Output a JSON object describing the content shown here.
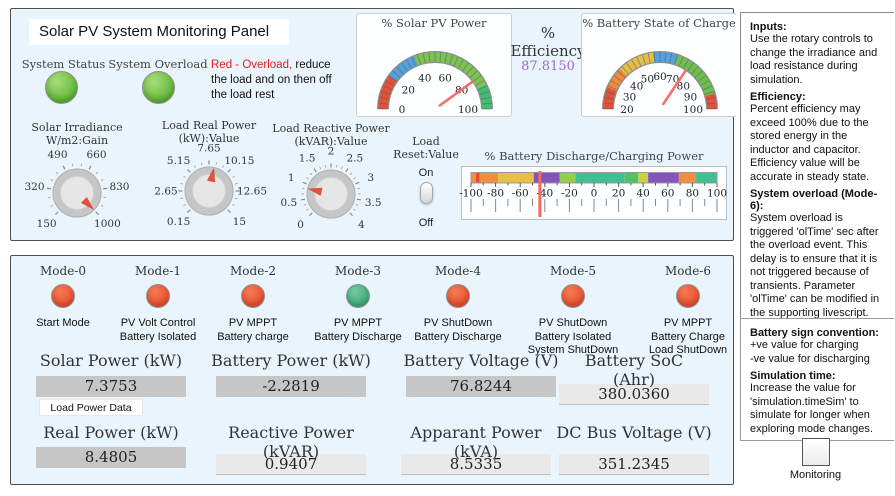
{
  "panel_title": "Solar PV System Monitoring Panel",
  "colors": {
    "panel_bg": "#e9f4fc",
    "led_green": "#5cb832",
    "led_red": "#ee5030",
    "mode_on_green": "#3fae7c",
    "needle_red": "#f2726a",
    "efficiency_value": "#a06bc9",
    "value_box_gray": "#c6c6c6",
    "warning_red": "#e01f1f"
  },
  "status": {
    "system_status_label": "System Status",
    "system_overload_label": "System Overload",
    "overload_warning_red": "Red - Overload,",
    "overload_warning_rest": "  reduce the load and on then off the load rest"
  },
  "efficiency": {
    "title1": "%",
    "title2": "Efficiency",
    "value": "87.8150"
  },
  "gauges": {
    "solar_pv": {
      "title": "% Solar PV Power",
      "min": 0,
      "max": 100,
      "value": 80,
      "ticks": [
        0,
        20,
        40,
        60,
        80,
        100
      ],
      "segments": [
        {
          "from": 0,
          "to": 20,
          "color": "#e2523b"
        },
        {
          "from": 20,
          "to": 38,
          "color": "#53a2dd"
        },
        {
          "from": 38,
          "to": 86,
          "color": "#7cc254"
        },
        {
          "from": 86,
          "to": 100,
          "color": "#43bd74"
        }
      ]
    },
    "battery_soc": {
      "title": "% Battery State of Charge",
      "min": 20,
      "max": 100,
      "value": 75,
      "ticks": [
        20,
        30,
        40,
        50,
        60,
        70,
        80,
        90,
        100
      ],
      "segments": [
        {
          "from": 20,
          "to": 30,
          "color": "#e2523b"
        },
        {
          "from": 30,
          "to": 40,
          "color": "#ee8b3c"
        },
        {
          "from": 40,
          "to": 57,
          "color": "#e3bf47"
        },
        {
          "from": 57,
          "to": 68,
          "color": "#53a2dd"
        },
        {
          "from": 68,
          "to": 93,
          "color": "#6fbe52"
        },
        {
          "from": 93,
          "to": 100,
          "color": "#e2523b"
        }
      ]
    },
    "discharge": {
      "title": "% Battery Discharge/Charging Power",
      "min": -100,
      "max": 100,
      "value": -44,
      "ticks": [
        -100,
        -80,
        -60,
        -40,
        -20,
        0,
        20,
        40,
        60,
        80,
        100
      ],
      "segments": [
        {
          "from": -100,
          "to": -96,
          "color": "#ef8f3f"
        },
        {
          "from": -96,
          "to": -93,
          "color": "#e34f35"
        },
        {
          "from": -93,
          "to": -78,
          "color": "#ef8f3f"
        },
        {
          "from": -78,
          "to": -49,
          "color": "#e5c044"
        },
        {
          "from": -49,
          "to": -28,
          "color": "#8455b8"
        },
        {
          "from": -28,
          "to": -15,
          "color": "#93cf4d"
        },
        {
          "from": -15,
          "to": 25,
          "color": "#3fbf92"
        },
        {
          "from": 25,
          "to": 36,
          "color": "#55c06a"
        },
        {
          "from": 36,
          "to": 44,
          "color": "#cbcf44"
        },
        {
          "from": 44,
          "to": 69,
          "color": "#8455b8"
        },
        {
          "from": 69,
          "to": 83,
          "color": "#ef8f3f"
        },
        {
          "from": 83,
          "to": 100,
          "color": "#3fbf92"
        }
      ]
    }
  },
  "knobs": [
    {
      "title1": "Solar Irradiance",
      "title2": "W/m2:Gain",
      "labels": [
        "150",
        "320",
        "490",
        "660",
        "830",
        "1000"
      ],
      "pointer_angle": 135
    },
    {
      "title1": "Load Real Power",
      "title2": "(kW):Value",
      "labels": [
        "0.15",
        "2.65",
        "5.15",
        "7.65",
        "10.15",
        "12.65",
        "15"
      ],
      "pointer_angle": 12
    },
    {
      "title1": "Load Reactive Power",
      "title2": "(kVAR):Value",
      "labels": [
        "0",
        "0.5",
        "1",
        "1.5",
        "2",
        "2.5",
        "3",
        "3.5",
        "4"
      ],
      "pointer_angle": 283
    }
  ],
  "switch": {
    "title1": "Load",
    "title2": "Reset:Value",
    "on_label": "On",
    "off_label": "Off",
    "state": "On"
  },
  "modes": [
    {
      "name": "Mode-0",
      "state": "red",
      "caption1": "Start Mode",
      "caption2": "",
      "caption3": ""
    },
    {
      "name": "Mode-1",
      "state": "red",
      "caption1": "PV Volt Control",
      "caption2": "Battery Isolated",
      "caption3": ""
    },
    {
      "name": "Mode-2",
      "state": "red",
      "caption1": "PV MPPT",
      "caption2": "Battery charge",
      "caption3": ""
    },
    {
      "name": "Mode-3",
      "state": "green",
      "caption1": "PV MPPT",
      "caption2": "Battery Discharge",
      "caption3": ""
    },
    {
      "name": "Mode-4",
      "state": "red",
      "caption1": "PV ShutDown",
      "caption2": "Battery Discharge",
      "caption3": ""
    },
    {
      "name": "Mode-5",
      "state": "red",
      "caption1": "PV ShutDown",
      "caption2": "Battery Isolated",
      "caption3": "System ShutDown"
    },
    {
      "name": "Mode-6",
      "state": "red",
      "caption1": "PV MPPT",
      "caption2": "Battery Charge",
      "caption3": "Load ShutDown"
    }
  ],
  "readouts": [
    {
      "label": "Solar Power (kW)",
      "value": "7.3753"
    },
    {
      "label": "Battery Power (kW)",
      "value": "-2.2819"
    },
    {
      "label": "Battery Voltage (V)",
      "value": "76.8244"
    },
    {
      "label": "Battery SoC (Ahr)",
      "value": "380.0360"
    },
    {
      "label": "Real Power (kW)",
      "value": "8.4805"
    },
    {
      "label": "Reactive Power (kVAR)",
      "value": "0.9407"
    },
    {
      "label": "Apparant Power (kVA)",
      "value": "8.5335"
    },
    {
      "label": "DC Bus Voltage (V)",
      "value": "351.2345"
    }
  ],
  "load_power_button": "Load Power Data",
  "sidebar": {
    "sections": [
      {
        "heading": "Inputs:",
        "body": "Use the rotary controls to change the irradiance and load resistance during simulation."
      },
      {
        "heading": "Efficiency:",
        "body": "Percent efficiency may exceed 100% due to the stored energy in the inductor and capacitor. Efficiency value will be accurate in steady state."
      },
      {
        "heading": "System overload (Mode-6):",
        "body": "System overload is triggered 'olTime' sec after the overload event. This delay is to ensure that it is not triggered because of transients.  Parameter 'olTime' can be modified in the supporting livescript."
      },
      {
        "heading": "Battery sign convention:",
        "body": "+ve value for charging\n-ve value for discharging"
      },
      {
        "heading": "Simulation time:",
        "body": "Increase the value for 'simulation.timeSim' to simulate for longer when exploring mode changes."
      }
    ],
    "monitoring_label": "Monitoring"
  }
}
